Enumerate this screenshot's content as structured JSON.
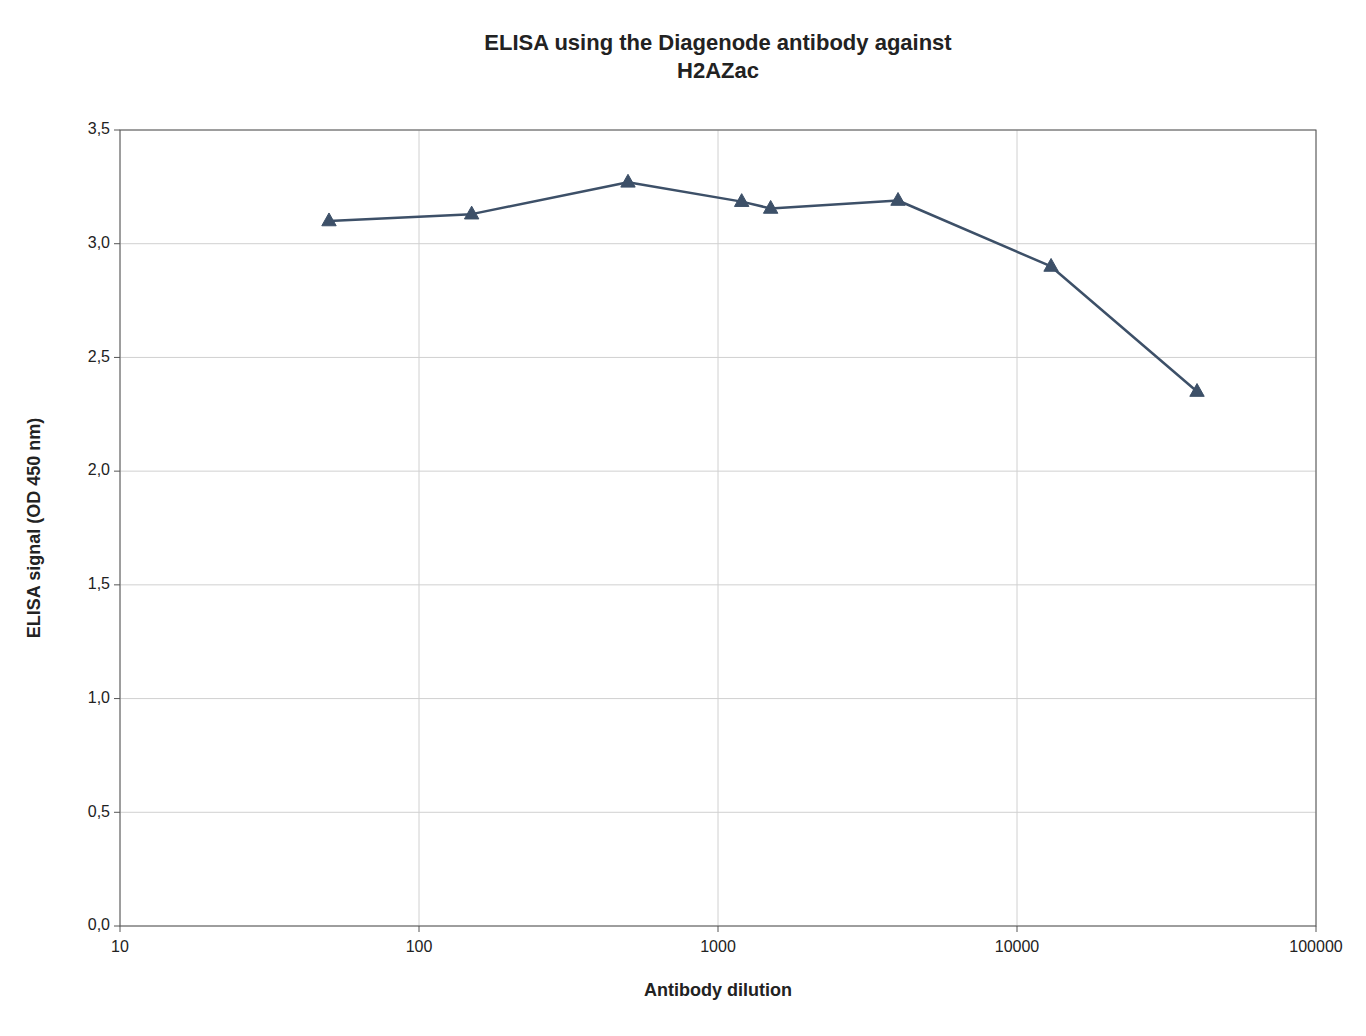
{
  "chart_data": {
    "type": "line",
    "title": "ELISA using the Diagenode antibody against\nH2AZac",
    "x_label": "Antibody dilution",
    "y_label": "ELISA signal (OD 450 nm)",
    "x": [
      50,
      150,
      500,
      1200,
      1500,
      4000,
      13000,
      40000
    ],
    "values": [
      3.1,
      3.13,
      3.27,
      3.185,
      3.155,
      3.19,
      2.9,
      2.35
    ],
    "color": "#3d5068",
    "marker": "triangle",
    "log": "x",
    "xlim": [
      10,
      100000
    ],
    "ylim": [
      0.0,
      3.5
    ],
    "xticks": [
      10,
      100,
      1000,
      10000,
      100000
    ],
    "yticks": [
      {
        "value": 0.0,
        "label": "0,0"
      },
      {
        "value": 0.5,
        "label": "0,5"
      },
      {
        "value": 1.0,
        "label": "1,0"
      },
      {
        "value": 1.5,
        "label": "1,5"
      },
      {
        "value": 2.0,
        "label": "2,0"
      },
      {
        "value": 2.5,
        "label": "2,5"
      },
      {
        "value": 3.0,
        "label": "3,0"
      },
      {
        "value": 3.5,
        "label": "3,5"
      }
    ],
    "grid": true
  }
}
